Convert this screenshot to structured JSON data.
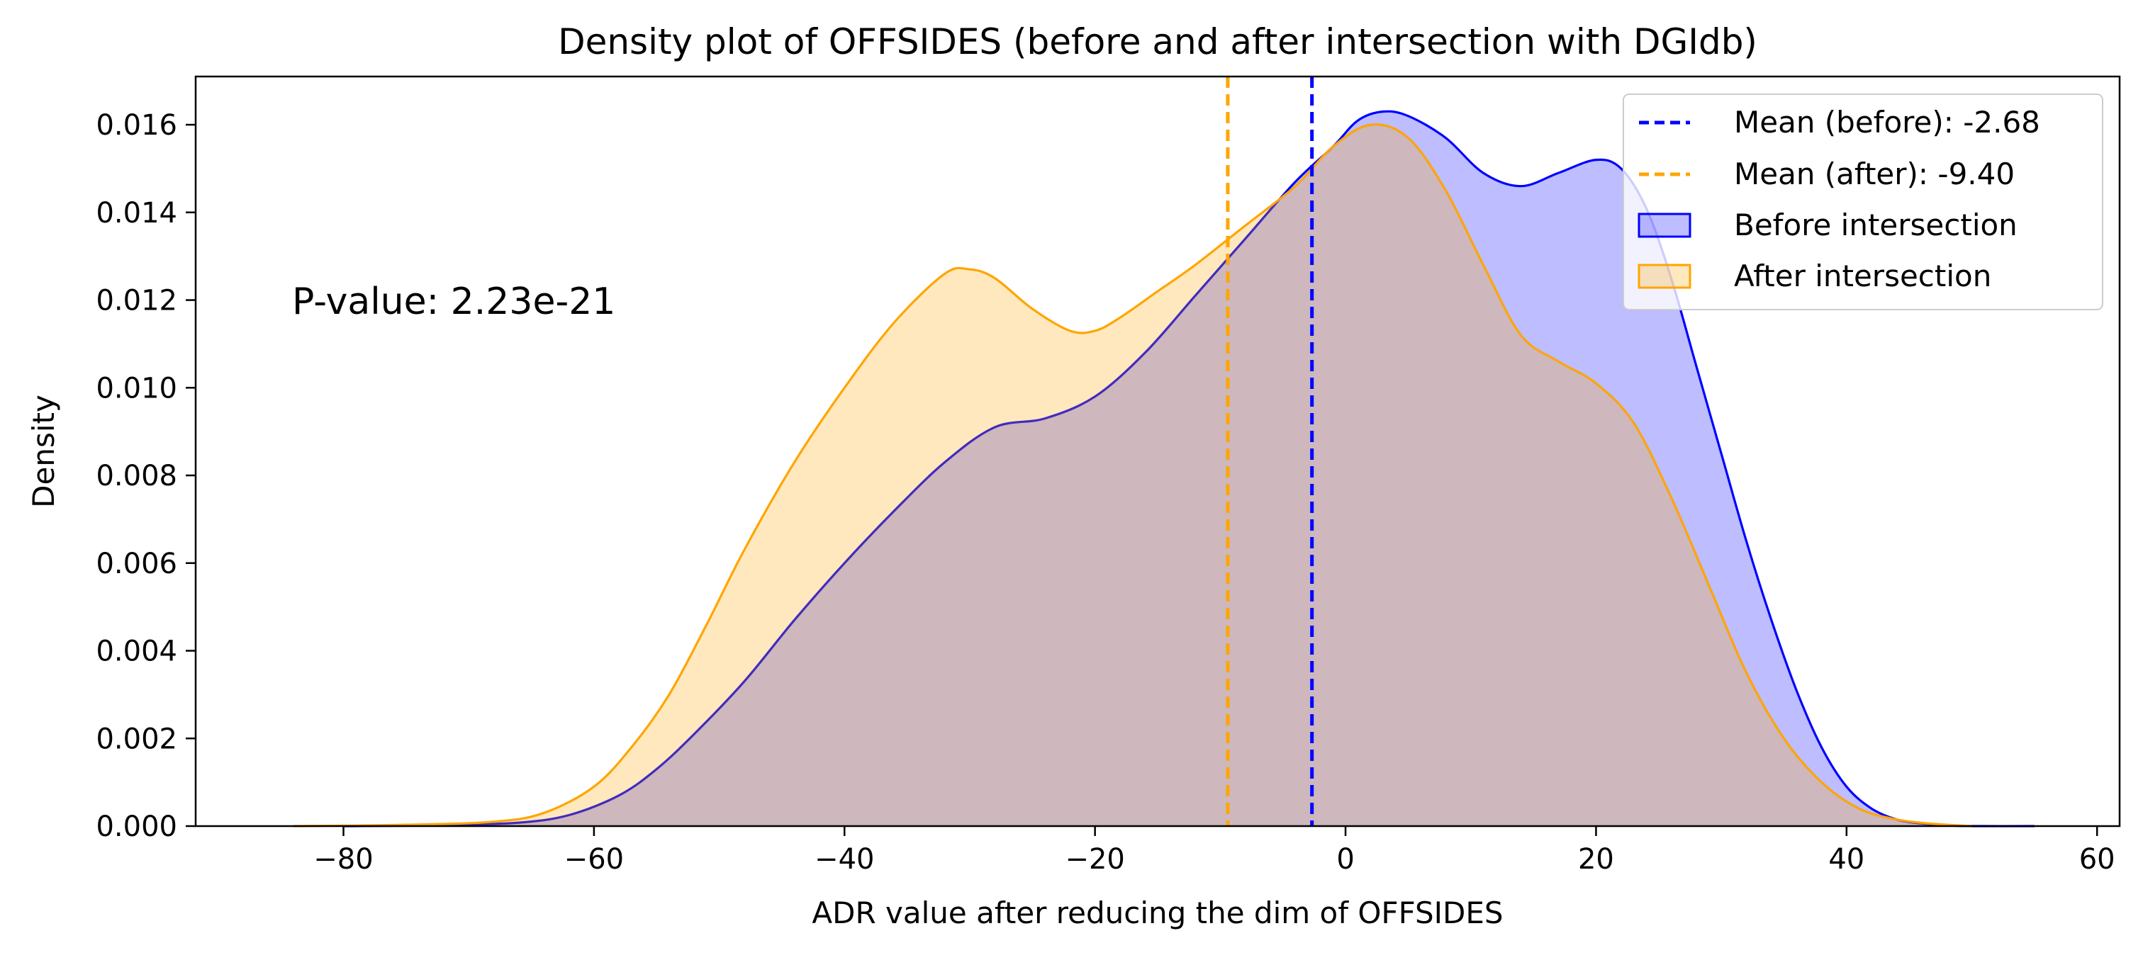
{
  "chart_data": {
    "type": "area",
    "title": "Density plot of OFFSIDES (before and after intersection with DGIdb)",
    "xlabel": "ADR value after reducing the dim of OFFSIDES",
    "ylabel": "Density",
    "xlim": [
      -91.8,
      61.8
    ],
    "ylim": [
      0,
      0.0171
    ],
    "xticks": [
      -80,
      -60,
      -40,
      -20,
      0,
      20,
      40,
      60
    ],
    "xtick_labels": [
      "−80",
      "−60",
      "−40",
      "−20",
      "0",
      "20",
      "40",
      "60"
    ],
    "yticks": [
      0,
      0.002,
      0.004,
      0.006,
      0.008,
      0.01,
      0.012,
      0.014,
      0.016
    ],
    "ytick_labels": [
      "0.000",
      "0.002",
      "0.004",
      "0.006",
      "0.008",
      "0.010",
      "0.012",
      "0.014",
      "0.016"
    ],
    "grid": false,
    "legend_position": "top-right",
    "annotation": "P-value: 2.23e-21",
    "series": [
      {
        "name": "Before intersection",
        "stroke": "#0000ff",
        "fill": "#0000ff",
        "fill_opacity": 0.26,
        "x": [
          -80,
          -72,
          -66,
          -62,
          -58,
          -55,
          -52,
          -48,
          -44,
          -40,
          -36,
          -32,
          -28,
          -24,
          -20,
          -16,
          -12,
          -8,
          -4,
          -1,
          1,
          3,
          5,
          8,
          11,
          14,
          17,
          20,
          22,
          24,
          26,
          28,
          30,
          32,
          34,
          36,
          38,
          40,
          42,
          44,
          46,
          48,
          50,
          55
        ],
        "values": [
          0.0,
          2e-05,
          8e-05,
          0.00025,
          0.0007,
          0.0013,
          0.0021,
          0.0033,
          0.0047,
          0.006,
          0.0072,
          0.0083,
          0.0091,
          0.0093,
          0.0098,
          0.0108,
          0.0121,
          0.0134,
          0.0147,
          0.0155,
          0.0161,
          0.0163,
          0.0162,
          0.0157,
          0.0149,
          0.0146,
          0.0149,
          0.0152,
          0.015,
          0.0141,
          0.0125,
          0.0105,
          0.0085,
          0.0065,
          0.0047,
          0.0031,
          0.0018,
          0.0009,
          0.0004,
          0.00015,
          6e-05,
          2e-05,
          0.0,
          0.0
        ]
      },
      {
        "name": "After intersection",
        "stroke": "#ffa500",
        "fill": "#ffa500",
        "fill_opacity": 0.26,
        "x": [
          -84,
          -75,
          -68,
          -64,
          -60,
          -57,
          -54,
          -51,
          -48,
          -44,
          -40,
          -36,
          -32,
          -30,
          -28,
          -25,
          -22,
          -20,
          -18,
          -15,
          -12,
          -8,
          -4,
          -1,
          2,
          5,
          8,
          11,
          14,
          17,
          20,
          23,
          26,
          29,
          32,
          35,
          38,
          41,
          44,
          47,
          50
        ],
        "values": [
          0.0,
          3e-05,
          0.0001,
          0.0003,
          0.0009,
          0.0018,
          0.003,
          0.0046,
          0.0063,
          0.0083,
          0.01,
          0.0115,
          0.0126,
          0.0127,
          0.0125,
          0.0118,
          0.0113,
          0.0113,
          0.0116,
          0.0122,
          0.0128,
          0.0137,
          0.0146,
          0.0155,
          0.016,
          0.0157,
          0.0145,
          0.0128,
          0.0112,
          0.0106,
          0.0101,
          0.0092,
          0.0075,
          0.0055,
          0.0035,
          0.002,
          0.001,
          0.0004,
          0.00015,
          5e-05,
          0.0
        ]
      }
    ],
    "reference_lines": [
      {
        "name": "Mean (before): -2.68",
        "x": -2.68,
        "color": "#0000ff"
      },
      {
        "name": "Mean (after): -9.40",
        "x": -9.4,
        "color": "#ffa500"
      }
    ]
  }
}
